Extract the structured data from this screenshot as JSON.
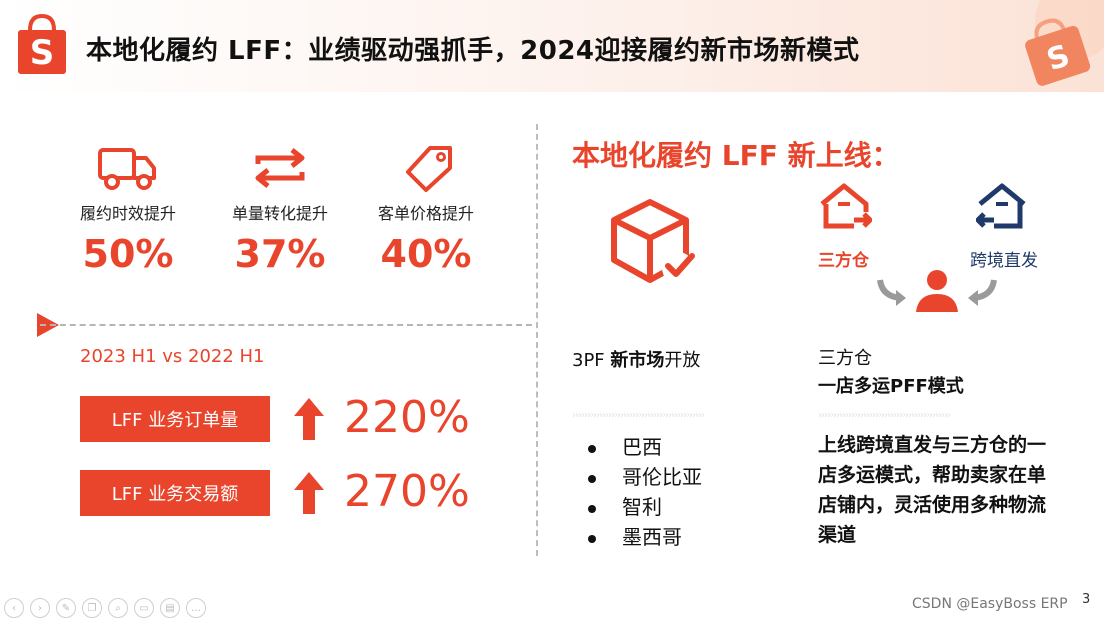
{
  "header": {
    "title": "本地化履约 LFF：业绩驱动强抓手，2024迎接履约新市场新模式",
    "logo_icon": "shopee-bag-icon",
    "brand_color": "#e8452c"
  },
  "metrics": [
    {
      "icon": "truck-icon",
      "label": "履约时效提升",
      "value": "50%"
    },
    {
      "icon": "swap-arrows-icon",
      "label": "单量转化提升",
      "value": "37%"
    },
    {
      "icon": "price-tag-icon",
      "label": "客单价格提升",
      "value": "40%"
    }
  ],
  "comparison": {
    "label": "2023 H1 vs 2022 H1",
    "kpis": [
      {
        "label": "LFF 业务订单量",
        "value": "220%"
      },
      {
        "label": "LFF 业务交易额",
        "value": "270%"
      }
    ]
  },
  "right": {
    "title": "本地化履约 LFF 新上线：",
    "warehouse_label": "三方仓",
    "cross_label": "跨境直发",
    "market": {
      "prefix": "3PF ",
      "bold": "新市场",
      "suffix": "开放",
      "countries": [
        "巴西",
        "哥伦比亚",
        "智利",
        "墨西哥"
      ]
    },
    "mode": {
      "line1": "三方仓",
      "line2": "一店多运PFF模式",
      "desc": "上线跨境直发与三方仓的一店多运模式，帮助卖家在单店铺内，灵活使用多种物流渠道"
    }
  },
  "footer": {
    "watermark": "CSDN @EasyBoss ERP",
    "page_number": "3"
  }
}
